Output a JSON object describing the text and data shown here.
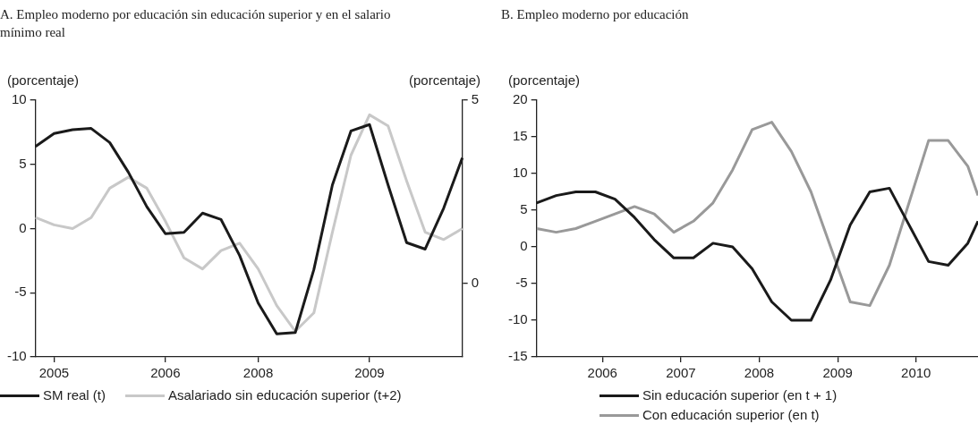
{
  "chart_data": [
    {
      "type": "line",
      "title": "A. Empleo moderno por educación sin educación superior y en el salario mínimo real",
      "ylabel": "(porcentaje)",
      "y2label": "(porcentaje)",
      "categories": [
        null,
        "2005",
        null,
        null,
        null,
        null,
        null,
        "2006",
        null,
        null,
        null,
        null,
        "2008",
        null,
        null,
        null,
        null,
        null,
        "2009",
        null,
        null,
        null,
        null,
        null
      ],
      "ylim": [
        -10,
        10
      ],
      "yticks": [
        -10,
        -5,
        0,
        5,
        10
      ],
      "y2lim": [
        -2,
        5
      ],
      "y2ticks": [
        0,
        5
      ],
      "grid": false,
      "legend": "bottom",
      "line_style": "solid",
      "marker": "none",
      "series": [
        {
          "name": "SM real (t)",
          "color": "#1a1a1a",
          "values": [
            6.4,
            7.4,
            7.7,
            7.8,
            6.7,
            4.4,
            1.7,
            -0.4,
            -0.3,
            1.2,
            0.7,
            -2.1,
            -5.8,
            -8.2,
            -8.1,
            -3.2,
            3.4,
            7.6,
            8.1,
            3.4,
            -1.1,
            -1.6,
            1.6,
            5.5
          ]
        },
        {
          "name": "Asalariado sin educación superior (t+2)",
          "color": "#c8c8c8",
          "axis": "y2",
          "values": [
            1.8,
            1.6,
            1.5,
            1.8,
            2.6,
            2.9,
            2.6,
            1.7,
            0.7,
            0.4,
            0.9,
            1.1,
            0.4,
            -0.6,
            -1.3,
            -0.8,
            1.4,
            3.5,
            4.6,
            4.3,
            2.8,
            1.4,
            1.2,
            1.5
          ]
        }
      ]
    },
    {
      "type": "line",
      "title": "B. Empleo moderno por educación",
      "ylabel": "(porcentaje)",
      "x": [
        2005.16,
        2005.41,
        2005.66,
        2005.91,
        2006.16,
        2006.41,
        2006.66,
        2006.91,
        2007.16,
        2007.41,
        2007.66,
        2007.91,
        2008.16,
        2008.41,
        2008.66,
        2008.91,
        2009.16,
        2009.41,
        2009.66,
        2009.91,
        2010.16,
        2010.41,
        2010.66,
        2010.79
      ],
      "xlim": [
        2005.16,
        2010.79
      ],
      "xticks": [
        2006,
        2007,
        2008,
        2009,
        2010
      ],
      "ylim": [
        -15,
        20
      ],
      "yticks": [
        -15,
        -10,
        -5,
        0,
        5,
        10,
        15,
        20
      ],
      "grid": false,
      "legend": "bottom",
      "line_style": "solid",
      "marker": "none",
      "series": [
        {
          "name": "Sin educación superior (en t + 1)",
          "color": "#1a1a1a",
          "values": [
            6,
            7,
            7.5,
            7.5,
            6.5,
            4,
            1,
            -1.5,
            -1.5,
            0.5,
            0,
            -3,
            -7.5,
            -10,
            -10,
            -4.5,
            3,
            7.5,
            8,
            3,
            -2,
            -2.5,
            0.5,
            3.5
          ]
        },
        {
          "name": "Con educación superior (en t)",
          "color": "#999999",
          "values": [
            2.5,
            2,
            2.5,
            3.5,
            4.5,
            5.5,
            4.5,
            2,
            3.5,
            6,
            10.5,
            16,
            17,
            13,
            7.5,
            0,
            -7.5,
            -8,
            -2.5,
            6,
            14.5,
            14.5,
            11,
            7
          ]
        }
      ]
    }
  ]
}
